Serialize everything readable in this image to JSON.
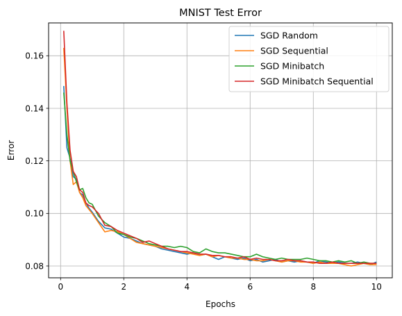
{
  "chart_data": {
    "type": "line",
    "title": "MNIST Test Error",
    "xlabel": "Epochs",
    "ylabel": "Error",
    "xlim": [
      -0.38,
      10.5
    ],
    "ylim": [
      0.0755,
      0.1725
    ],
    "xticks": [
      0,
      2,
      4,
      6,
      8,
      10
    ],
    "xtick_labels": [
      "0",
      "2",
      "4",
      "6",
      "8",
      "10"
    ],
    "yticks": [
      0.08,
      0.1,
      0.12,
      0.14,
      0.16
    ],
    "ytick_labels": [
      "0.08",
      "0.10",
      "0.12",
      "0.14",
      "0.16"
    ],
    "grid": true,
    "legend_position": "top-right",
    "series": [
      {
        "name": "SGD Random",
        "color": "#1f77b4",
        "x": [
          0.1,
          0.2,
          0.3,
          0.4,
          0.5,
          0.6,
          0.7,
          0.8,
          0.9,
          1.0,
          1.2,
          1.4,
          1.6,
          1.8,
          2.0,
          2.2,
          2.4,
          2.6,
          2.8,
          3.0,
          3.2,
          3.4,
          3.6,
          3.8,
          4.0,
          4.2,
          4.4,
          4.6,
          4.8,
          5.0,
          5.2,
          5.4,
          5.6,
          5.8,
          6.0,
          6.2,
          6.4,
          6.6,
          6.8,
          7.0,
          7.2,
          7.4,
          7.6,
          7.8,
          8.0,
          8.2,
          8.4,
          8.6,
          8.8,
          9.0,
          9.2,
          9.4,
          9.6,
          9.8,
          10.0
        ],
        "y": [
          0.1485,
          0.125,
          0.121,
          0.114,
          0.113,
          0.108,
          0.107,
          0.104,
          0.102,
          0.1005,
          0.097,
          0.0945,
          0.094,
          0.0925,
          0.091,
          0.0905,
          0.0895,
          0.0885,
          0.088,
          0.0875,
          0.0865,
          0.086,
          0.0855,
          0.085,
          0.0845,
          0.085,
          0.084,
          0.0845,
          0.0835,
          0.0825,
          0.0835,
          0.083,
          0.0825,
          0.083,
          0.082,
          0.0825,
          0.0815,
          0.082,
          0.0825,
          0.0815,
          0.082,
          0.0815,
          0.082,
          0.0815,
          0.081,
          0.082,
          0.0815,
          0.081,
          0.0815,
          0.081,
          0.081,
          0.0815,
          0.081,
          0.0805,
          0.0815
        ]
      },
      {
        "name": "SGD Sequential",
        "color": "#ff7f0e",
        "x": [
          0.1,
          0.2,
          0.3,
          0.4,
          0.5,
          0.6,
          0.7,
          0.8,
          0.9,
          1.0,
          1.2,
          1.4,
          1.6,
          1.8,
          2.0,
          2.2,
          2.4,
          2.6,
          2.8,
          3.0,
          3.2,
          3.4,
          3.6,
          3.8,
          4.0,
          4.2,
          4.4,
          4.6,
          4.8,
          5.0,
          5.2,
          5.4,
          5.6,
          5.8,
          6.0,
          6.2,
          6.4,
          6.6,
          6.8,
          7.0,
          7.2,
          7.4,
          7.6,
          7.8,
          8.0,
          8.2,
          8.4,
          8.6,
          8.8,
          9.0,
          9.2,
          9.4,
          9.6,
          9.8,
          10.0
        ],
        "y": [
          0.163,
          0.14,
          0.12,
          0.111,
          0.112,
          0.108,
          0.106,
          0.103,
          0.1015,
          0.1,
          0.0965,
          0.093,
          0.0935,
          0.093,
          0.092,
          0.0905,
          0.089,
          0.0885,
          0.088,
          0.0875,
          0.087,
          0.0865,
          0.086,
          0.0855,
          0.085,
          0.0845,
          0.084,
          0.0845,
          0.0835,
          0.084,
          0.0835,
          0.083,
          0.083,
          0.0825,
          0.0825,
          0.082,
          0.082,
          0.0825,
          0.082,
          0.0815,
          0.082,
          0.082,
          0.0815,
          0.0815,
          0.081,
          0.0815,
          0.081,
          0.081,
          0.081,
          0.0805,
          0.08,
          0.0805,
          0.081,
          0.0805,
          0.0805
        ]
      },
      {
        "name": "SGD Minibatch",
        "color": "#2ca02c",
        "x": [
          0.1,
          0.2,
          0.3,
          0.4,
          0.5,
          0.6,
          0.7,
          0.8,
          0.9,
          1.0,
          1.2,
          1.4,
          1.6,
          1.8,
          2.0,
          2.2,
          2.4,
          2.6,
          2.8,
          3.0,
          3.2,
          3.4,
          3.6,
          3.8,
          4.0,
          4.2,
          4.4,
          4.6,
          4.8,
          5.0,
          5.2,
          5.4,
          5.6,
          5.8,
          6.0,
          6.2,
          6.4,
          6.6,
          6.8,
          7.0,
          7.2,
          7.4,
          7.6,
          7.8,
          8.0,
          8.2,
          8.4,
          8.6,
          8.8,
          9.0,
          9.2,
          9.4,
          9.6,
          9.8,
          10.0
        ],
        "y": [
          0.146,
          0.13,
          0.12,
          0.116,
          0.112,
          0.109,
          0.1095,
          0.106,
          0.104,
          0.1035,
          0.099,
          0.0965,
          0.095,
          0.0925,
          0.092,
          0.091,
          0.0905,
          0.0895,
          0.0885,
          0.088,
          0.0875,
          0.0875,
          0.087,
          0.0875,
          0.087,
          0.0855,
          0.085,
          0.0865,
          0.0855,
          0.085,
          0.085,
          0.0845,
          0.084,
          0.0835,
          0.0835,
          0.0845,
          0.0835,
          0.083,
          0.0825,
          0.083,
          0.0825,
          0.0825,
          0.0825,
          0.083,
          0.0825,
          0.082,
          0.082,
          0.0815,
          0.082,
          0.0815,
          0.082,
          0.081,
          0.0815,
          0.081,
          0.081
        ]
      },
      {
        "name": "SGD Minibatch Sequential",
        "color": "#d62728",
        "x": [
          0.1,
          0.2,
          0.3,
          0.4,
          0.5,
          0.6,
          0.7,
          0.8,
          0.9,
          1.0,
          1.2,
          1.4,
          1.6,
          1.8,
          2.0,
          2.2,
          2.4,
          2.6,
          2.8,
          3.0,
          3.2,
          3.4,
          3.6,
          3.8,
          4.0,
          4.2,
          4.4,
          4.6,
          4.8,
          5.0,
          5.2,
          5.4,
          5.6,
          5.8,
          6.0,
          6.2,
          6.4,
          6.6,
          6.8,
          7.0,
          7.2,
          7.4,
          7.6,
          7.8,
          8.0,
          8.2,
          8.4,
          8.6,
          8.8,
          9.0,
          9.2,
          9.4,
          9.6,
          9.8,
          10.0
        ],
        "y": [
          0.1695,
          0.142,
          0.124,
          0.116,
          0.114,
          0.109,
          0.108,
          0.104,
          0.103,
          0.1025,
          0.1,
          0.0955,
          0.095,
          0.0935,
          0.0925,
          0.0915,
          0.0905,
          0.089,
          0.0895,
          0.0885,
          0.0875,
          0.0865,
          0.086,
          0.0855,
          0.0855,
          0.085,
          0.0845,
          0.0845,
          0.084,
          0.084,
          0.0835,
          0.0835,
          0.083,
          0.0835,
          0.0825,
          0.083,
          0.0825,
          0.0825,
          0.082,
          0.082,
          0.0825,
          0.082,
          0.082,
          0.0815,
          0.0815,
          0.081,
          0.081,
          0.0815,
          0.081,
          0.081,
          0.081,
          0.081,
          0.081,
          0.081,
          0.081
        ]
      }
    ]
  }
}
